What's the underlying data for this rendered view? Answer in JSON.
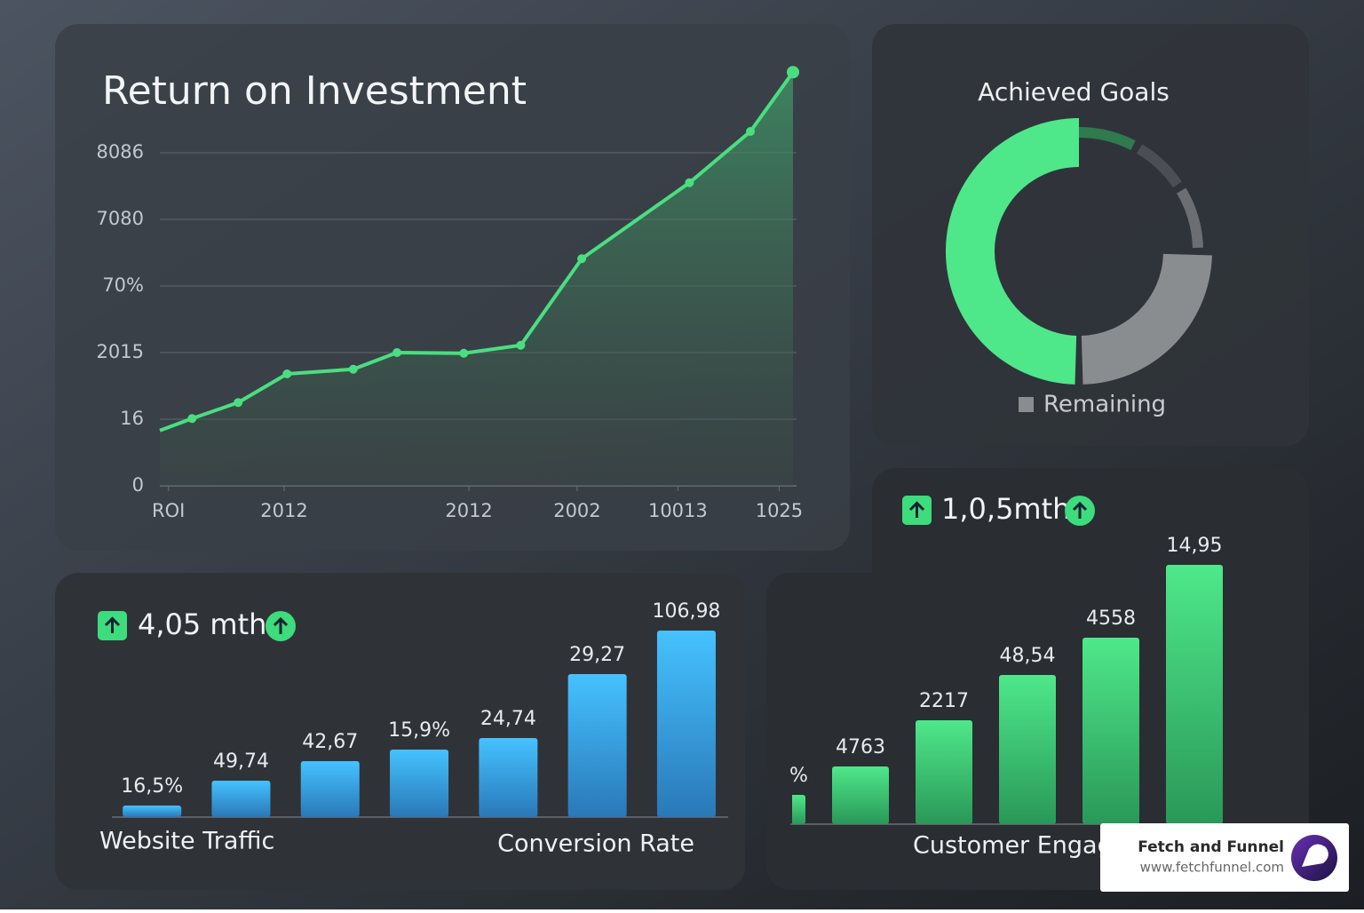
{
  "chart_data": [
    {
      "type": "area",
      "title": "Return on Investment",
      "x": [
        0,
        0.56,
        1.36,
        2.21,
        3.36,
        4.12,
        5.28,
        6.27,
        7.33,
        9.2,
        10.26,
        11
      ],
      "values": [
        0.83,
        1.01,
        1.25,
        1.68,
        1.75,
        2.0,
        1.99,
        2.11,
        3.41,
        4.55,
        5.32,
        6.21
      ],
      "xlim": [
        0,
        11
      ],
      "ylim": [
        0,
        6.3
      ],
      "yticks": [
        0,
        1,
        2,
        3,
        4,
        5
      ],
      "ytick_labels": [
        "0",
        "16",
        "2015",
        "70%",
        "7080",
        "8086"
      ],
      "xticks": [
        0.15,
        2.16,
        5.37,
        7.25,
        9.0,
        10.76
      ],
      "xtick_labels": [
        "ROI",
        "2012",
        "2012",
        "2002",
        "10013",
        "1025"
      ],
      "color": "#4ade80",
      "grid": true
    },
    {
      "type": "donut",
      "title": "Achieved Goals",
      "values": [
        8,
        8,
        9,
        25,
        50
      ],
      "colors": [
        "#2f7a4e",
        "#4a4f55",
        "#6b6f74",
        "#8a8d90",
        "#4ee88a"
      ],
      "legend": "Remaining",
      "legend_color": "#8a8d90"
    },
    {
      "type": "bar",
      "headline": "4,05 mth",
      "values": [
        13,
        41,
        63,
        76,
        89,
        161,
        210
      ],
      "bar_labels": [
        "16,5%",
        "49,74",
        "42,67",
        "15,9%",
        "24,74",
        "29,27",
        "106,98"
      ],
      "captions": [
        "Website Traffic",
        "Conversion Rate"
      ],
      "color": "#3fb8f5"
    },
    {
      "type": "bar",
      "headline": "1,0,5mth",
      "values": [
        33,
        65,
        117,
        168,
        210,
        292
      ],
      "bar_labels": [
        "%",
        "4763",
        "2217",
        "48,54",
        "4558",
        "14,95"
      ],
      "captions": [
        "Customer Engag"
      ],
      "color": "#4ee88a"
    }
  ],
  "badge": {
    "name": "Fetch and Funnel",
    "url": "www.fetchfunnel.com"
  }
}
